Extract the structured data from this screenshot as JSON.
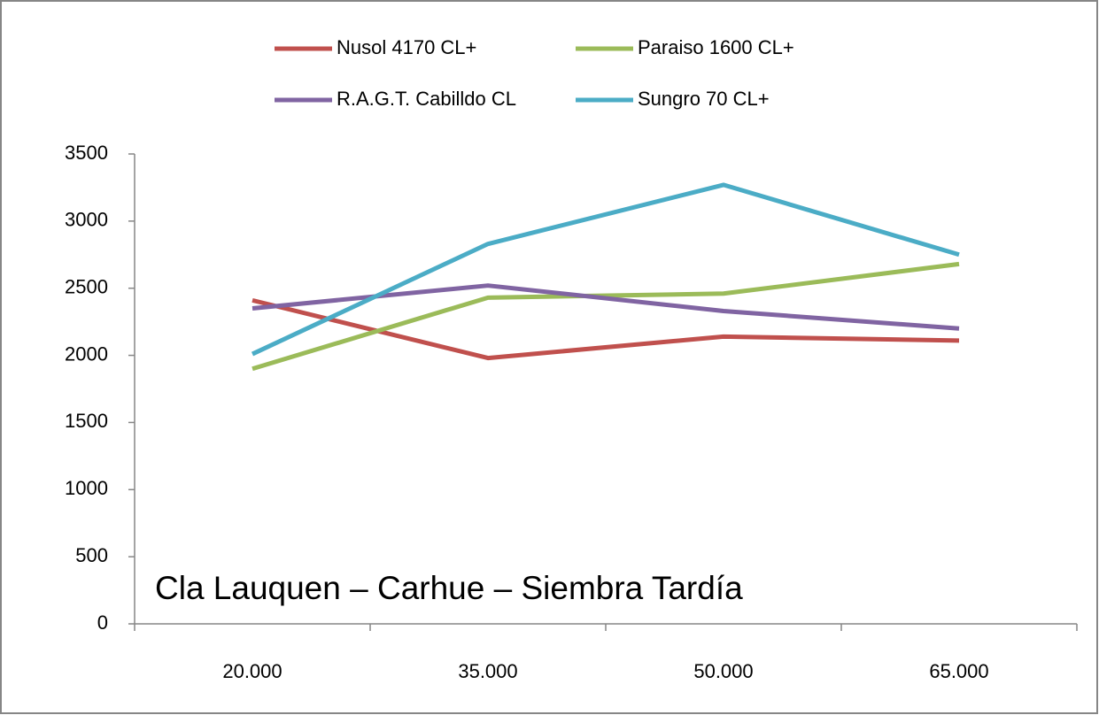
{
  "chart_data": {
    "type": "line",
    "annotation": "Cla Lauquen – Carhue – Siembra Tardía",
    "categories": [
      "20.000",
      "35.000",
      "50.000",
      "65.000"
    ],
    "series": [
      {
        "name": "Nusol 4170 CL+",
        "color": "#c0504d",
        "values": [
          2410,
          1980,
          2140,
          2110
        ]
      },
      {
        "name": "Paraiso 1600 CL+",
        "color": "#9bbb59",
        "values": [
          1900,
          2430,
          2460,
          2680
        ]
      },
      {
        "name": "R.A.G.T. Cabilldo CL",
        "color": "#8064a2",
        "values": [
          2350,
          2520,
          2330,
          2200
        ]
      },
      {
        "name": "Sungro 70 CL+",
        "color": "#4bacc6",
        "values": [
          2010,
          2830,
          3270,
          2750
        ]
      }
    ],
    "ylim": [
      0,
      3500
    ],
    "yticks": [
      0,
      500,
      1000,
      1500,
      2000,
      2500,
      3000,
      3500
    ],
    "grid": false,
    "legend": "top"
  }
}
